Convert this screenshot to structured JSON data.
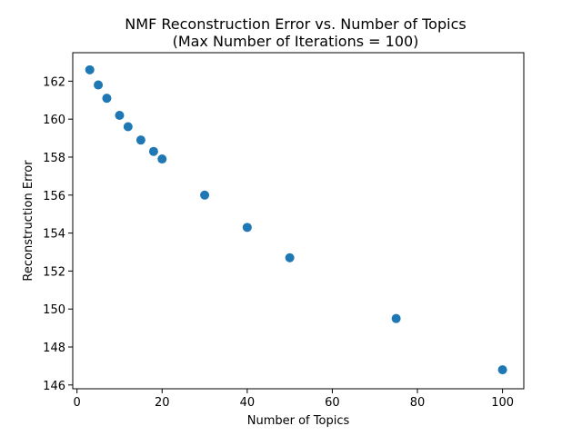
{
  "chart_data": {
    "type": "scatter",
    "title": "NMF Reconstruction Error vs. Number of Topics",
    "subtitle": "(Max Number of Iterations = 100)",
    "xlabel": "Number of Topics",
    "ylabel": "Reconstruction Error",
    "xlim": [
      -1,
      105
    ],
    "ylim": [
      145.8,
      163.5
    ],
    "xticks": [
      0,
      20,
      40,
      60,
      80,
      100
    ],
    "yticks": [
      146,
      148,
      150,
      152,
      154,
      156,
      158,
      160,
      162
    ],
    "grid": false,
    "marker_color": "#1f77b4",
    "series": [
      {
        "x": [
          3,
          5,
          7,
          10,
          12,
          15,
          18,
          20,
          30,
          40,
          50,
          75,
          100
        ],
        "y": [
          162.6,
          161.8,
          161.1,
          160.2,
          159.6,
          158.9,
          158.3,
          157.9,
          156.0,
          154.3,
          152.7,
          149.5,
          146.8
        ]
      }
    ]
  }
}
